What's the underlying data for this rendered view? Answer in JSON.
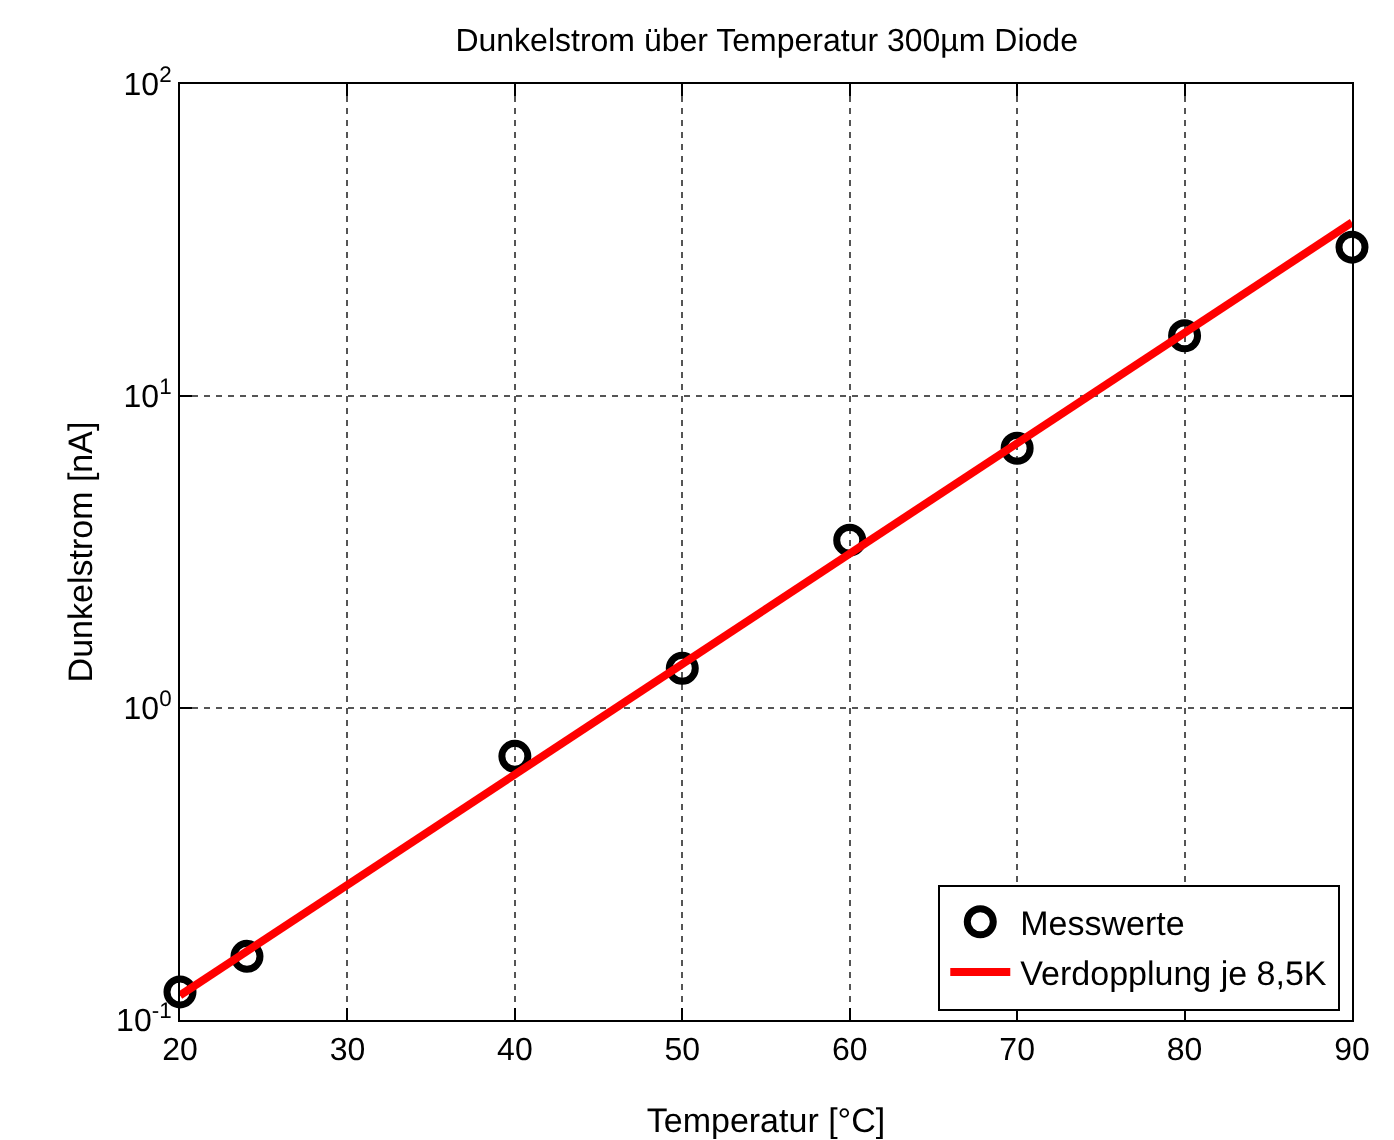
{
  "chart_data": {
    "type": "scatter",
    "title": "Dunkelstrom über Temperatur 300µm Diode",
    "xlabel": "Temperatur [°C]",
    "ylabel": "Dunkelstrom [nA]",
    "log": "y",
    "grid": true,
    "legend": "bottom right",
    "marker": "circle",
    "xlim": [
      20,
      90
    ],
    "xticks": [
      20,
      30,
      40,
      50,
      60,
      70,
      80,
      90
    ],
    "ylim": [
      0.1,
      100
    ],
    "yticks": [
      {
        "value": 0.1,
        "label": "10$^{-1}$"
      },
      {
        "value": 1,
        "label": "10$^{0}$"
      },
      {
        "value": 10,
        "label": "10$^{1}$"
      },
      {
        "value": 100,
        "label": "10$^{2}$"
      }
    ],
    "series": [
      {
        "name": "Messwerte",
        "color": "#000000",
        "x": [
          20,
          24,
          40,
          50,
          60,
          70,
          80,
          90
        ],
        "values": [
          0.123,
          0.16,
          0.7,
          1.34,
          3.45,
          6.8,
          15.6,
          30
        ]
      },
      {
        "name": "Verdopplung je 8,5K",
        "type": "line",
        "marker": "none",
        "line_style": "solid",
        "color": "#ff0000",
        "x": [
          20,
          90
        ],
        "values": [
          0.12,
          36
        ]
      }
    ]
  }
}
